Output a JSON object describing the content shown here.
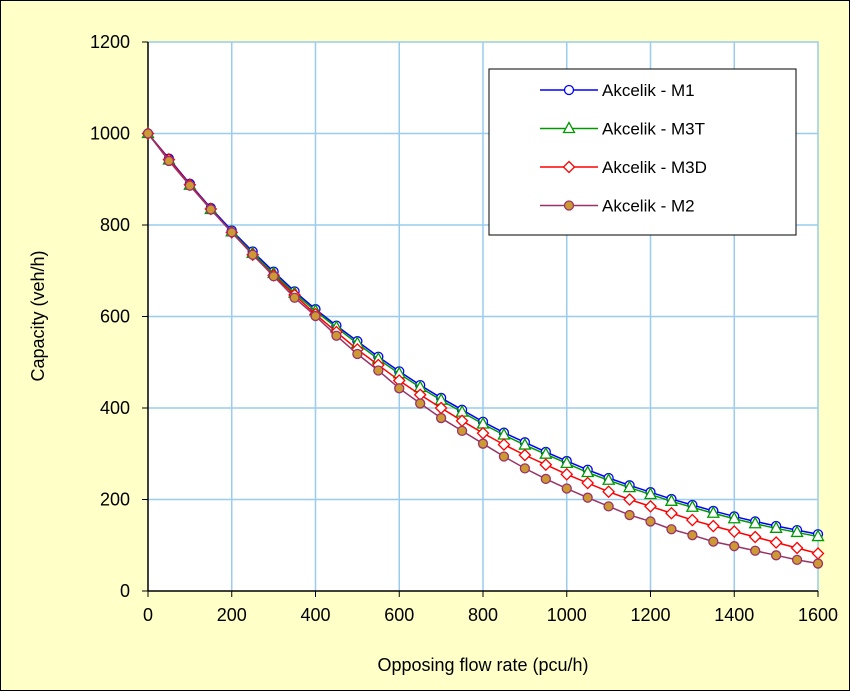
{
  "chart_data": {
    "type": "line",
    "title": "",
    "xlabel": "Opposing flow rate (pcu/h)",
    "ylabel": "Capacity (veh/h)",
    "xlim": [
      0,
      1600
    ],
    "ylim": [
      0,
      1200
    ],
    "xticks": [
      0,
      200,
      400,
      600,
      800,
      1000,
      1200,
      1400,
      1600
    ],
    "yticks": [
      0,
      200,
      400,
      600,
      800,
      1000,
      1200
    ],
    "grid": true,
    "legend_position": "top-right",
    "plot_background": "#ffffff",
    "figure_background": "#ffffc8",
    "gridline_color": "#99ccee",
    "x": [
      0,
      50,
      100,
      150,
      200,
      250,
      300,
      350,
      400,
      450,
      500,
      550,
      600,
      650,
      700,
      750,
      800,
      850,
      900,
      950,
      1000,
      1050,
      1100,
      1150,
      1200,
      1250,
      1300,
      1350,
      1400,
      1450,
      1500,
      1550,
      1600
    ],
    "series": [
      {
        "name": "Akcelik - M1",
        "color": "#0000ff",
        "marker": "circle",
        "values": [
          1000,
          945,
          890,
          837,
          788,
          742,
          698,
          655,
          616,
          580,
          546,
          512,
          480,
          450,
          422,
          396,
          370,
          346,
          325,
          304,
          284,
          265,
          247,
          231,
          216,
          201,
          188,
          175,
          163,
          152,
          142,
          133,
          124
        ]
      },
      {
        "name": "Akcelik - M3T",
        "color": "#009900",
        "marker": "triangle",
        "values": [
          1000,
          942,
          887,
          834,
          785,
          738,
          694,
          651,
          612,
          576,
          541,
          507,
          475,
          445,
          417,
          391,
          365,
          341,
          319,
          299,
          279,
          259,
          242,
          226,
          211,
          196,
          183,
          170,
          158,
          147,
          137,
          128,
          119
        ]
      },
      {
        "name": "Akcelik - M3D",
        "color": "#ff0000",
        "marker": "diamond",
        "values": [
          1000,
          943,
          888,
          835,
          784,
          735,
          690,
          647,
          605,
          566,
          528,
          494,
          460,
          429,
          400,
          372,
          345,
          320,
          297,
          276,
          255,
          236,
          217,
          200,
          185,
          170,
          155,
          142,
          130,
          118,
          106,
          94,
          82
        ]
      },
      {
        "name": "Akcelik - M2",
        "color": "#993366",
        "marker_fill": "#cc9933",
        "marker": "circle",
        "values": [
          1000,
          940,
          886,
          834,
          784,
          735,
          688,
          641,
          601,
          558,
          518,
          482,
          443,
          410,
          378,
          350,
          322,
          294,
          268,
          245,
          224,
          204,
          185,
          166,
          152,
          135,
          122,
          108,
          98,
          88,
          78,
          68,
          60
        ]
      }
    ]
  }
}
